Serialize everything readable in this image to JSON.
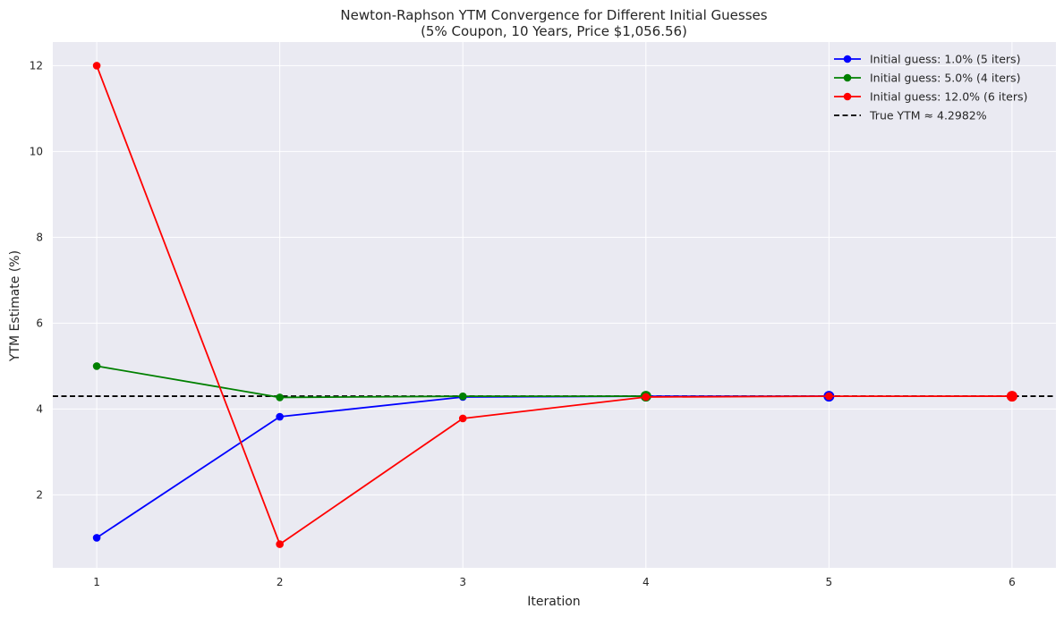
{
  "chart_data": {
    "type": "line",
    "title": "Newton-Raphson YTM Convergence for Different Initial Guesses",
    "subtitle": "(5% Coupon, 10 Years, Price $1,056.56)",
    "xlabel": "Iteration",
    "ylabel": "YTM Estimate (%)",
    "xlim": [
      0.76,
      6.24
    ],
    "ylim": [
      0.3,
      12.55
    ],
    "xticks": [
      1,
      2,
      3,
      4,
      5,
      6
    ],
    "yticks": [
      2,
      4,
      6,
      8,
      10,
      12
    ],
    "grid": true,
    "legend_position": "top-right",
    "series": [
      {
        "name": "Initial guess: 1.0% (5 iters)",
        "color": "#0000ff",
        "x": [
          1,
          2,
          3,
          4,
          5
        ],
        "y": [
          1.0,
          3.82,
          4.28,
          4.298,
          4.2982
        ]
      },
      {
        "name": "Initial guess: 5.0% (4 iters)",
        "color": "#008000",
        "x": [
          1,
          2,
          3,
          4
        ],
        "y": [
          5.0,
          4.27,
          4.297,
          4.2982
        ]
      },
      {
        "name": "Initial guess: 12.0% (6 iters)",
        "color": "#ff0000",
        "x": [
          1,
          2,
          3,
          4,
          5,
          6
        ],
        "y": [
          12.0,
          0.85,
          3.78,
          4.28,
          4.298,
          4.2982
        ]
      }
    ],
    "reference_line": {
      "name": "True YTM ≈ 4.2982%",
      "y": 4.2982,
      "color": "#000000",
      "style": "dashed"
    }
  }
}
